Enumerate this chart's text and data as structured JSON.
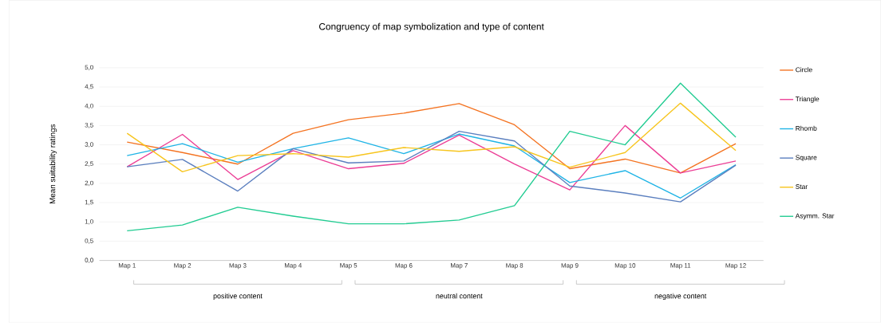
{
  "chart_data": {
    "type": "line",
    "title": "Congruency of map symbolization and type of content",
    "ylabel": "Mean suitability ratings",
    "categories": [
      "Map 1",
      "Map 2",
      "Map 3",
      "Map 4",
      "Map 5",
      "Map 6",
      "Map 7",
      "Map 8",
      "Map 9",
      "Map 10",
      "Map 11",
      "Map 12"
    ],
    "series": [
      {
        "name": "Circle",
        "color": "#f47321",
        "values": [
          3.07,
          2.8,
          2.5,
          3.3,
          3.65,
          3.82,
          4.07,
          3.52,
          2.38,
          2.63,
          2.27,
          3.03
        ]
      },
      {
        "name": "Triangle",
        "color": "#ec3f96",
        "values": [
          2.43,
          3.27,
          2.1,
          2.85,
          2.38,
          2.52,
          3.25,
          2.5,
          1.83,
          3.5,
          2.27,
          2.58
        ]
      },
      {
        "name": "Rhomb",
        "color": "#1fb4e6",
        "values": [
          2.72,
          3.03,
          2.55,
          2.9,
          3.18,
          2.77,
          3.28,
          2.97,
          2.02,
          2.33,
          1.62,
          2.48
        ]
      },
      {
        "name": "Square",
        "color": "#5b7fbf",
        "values": [
          2.43,
          2.62,
          1.8,
          2.9,
          2.53,
          2.58,
          3.35,
          3.1,
          1.93,
          1.75,
          1.52,
          2.47
        ]
      },
      {
        "name": "Star",
        "color": "#f7c51e",
        "values": [
          3.3,
          2.3,
          2.72,
          2.77,
          2.68,
          2.93,
          2.83,
          2.95,
          2.42,
          2.8,
          4.08,
          2.85
        ]
      },
      {
        "name": "Asymm. Star",
        "color": "#22cc92",
        "values": [
          0.77,
          0.92,
          1.38,
          1.15,
          0.95,
          0.95,
          1.05,
          1.42,
          3.35,
          3.0,
          4.6,
          3.2
        ]
      }
    ],
    "ylim": [
      0,
      5
    ],
    "yticks": [
      {
        "value": 0,
        "label": "0,0"
      },
      {
        "value": 0.5,
        "label": "0,5"
      },
      {
        "value": 1,
        "label": "1,0"
      },
      {
        "value": 1.5,
        "label": "1,5"
      },
      {
        "value": 2,
        "label": "2,0"
      },
      {
        "value": 2.5,
        "label": "2,5"
      },
      {
        "value": 3,
        "label": "3,0"
      },
      {
        "value": 3.5,
        "label": "3,5"
      },
      {
        "value": 4,
        "label": "4,0"
      },
      {
        "value": 4.5,
        "label": "4,5"
      },
      {
        "value": 5,
        "label": "5,0"
      }
    ],
    "grid": "y",
    "legend": "right",
    "marker": "none",
    "line_style": "solid",
    "annotations": [
      "positive content",
      "neutral content",
      "negative content"
    ]
  }
}
